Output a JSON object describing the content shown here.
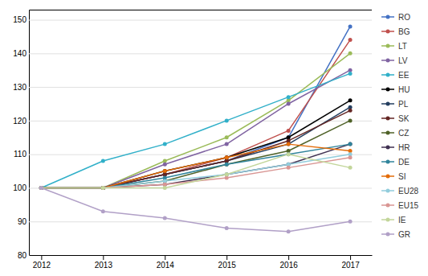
{
  "chart_data": {
    "type": "line",
    "x": [
      2012,
      2013,
      2014,
      2015,
      2016,
      2017
    ],
    "xlim": [
      2011.8,
      2017.35
    ],
    "xticks": [
      2012,
      2013,
      2014,
      2015,
      2016,
      2017
    ],
    "ylim": [
      80,
      153
    ],
    "yticks": [
      80,
      90,
      100,
      110,
      120,
      130,
      140,
      150
    ],
    "grid": true,
    "legend": "right",
    "marker": "circle",
    "series": [
      {
        "name": "RO",
        "color": "#4472C4",
        "values": [
          100,
          100,
          104,
          108,
          115,
          148
        ]
      },
      {
        "name": "BG",
        "color": "#C0504D",
        "values": [
          100,
          100,
          104,
          109,
          117,
          144
        ]
      },
      {
        "name": "LT",
        "color": "#9BBB59",
        "values": [
          100,
          100,
          108,
          115,
          126,
          140
        ]
      },
      {
        "name": "LV",
        "color": "#8064A2",
        "values": [
          100,
          100,
          107,
          113,
          125,
          135
        ]
      },
      {
        "name": "EE",
        "color": "#31B0C9",
        "values": [
          100,
          108,
          113,
          120,
          127,
          134
        ]
      },
      {
        "name": "HU",
        "color": "#000000",
        "values": [
          100,
          100,
          105,
          109,
          115,
          126
        ]
      },
      {
        "name": "PL",
        "color": "#243F60",
        "values": [
          100,
          100,
          104,
          108,
          113,
          124
        ]
      },
      {
        "name": "SK",
        "color": "#632523",
        "values": [
          100,
          100,
          104,
          108,
          114,
          123
        ]
      },
      {
        "name": "CZ",
        "color": "#4F6228",
        "values": [
          100,
          100,
          102,
          107,
          111,
          120
        ]
      },
      {
        "name": "HR",
        "color": "#403152",
        "values": [
          100,
          100,
          101,
          104,
          107,
          113
        ]
      },
      {
        "name": "DE",
        "color": "#31849B",
        "values": [
          100,
          100,
          103,
          107,
          110,
          113
        ]
      },
      {
        "name": "SI",
        "color": "#E36C09",
        "values": [
          100,
          100,
          105,
          109,
          113,
          111
        ]
      },
      {
        "name": "EU28",
        "color": "#92CDDC",
        "values": [
          100,
          100,
          102,
          104,
          107,
          110
        ]
      },
      {
        "name": "EU15",
        "color": "#D99694",
        "values": [
          100,
          100,
          101,
          103,
          106,
          109
        ]
      },
      {
        "name": "IE",
        "color": "#C3D69B",
        "values": [
          100,
          100,
          100,
          104,
          110,
          106
        ]
      },
      {
        "name": "GR",
        "color": "#B1A0C7",
        "values": [
          100,
          93,
          91,
          88,
          87,
          90
        ]
      }
    ]
  }
}
